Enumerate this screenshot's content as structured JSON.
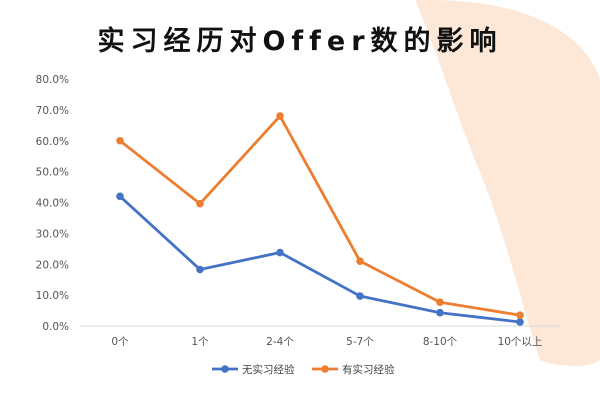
{
  "colors": {
    "series_1": "#4472c4",
    "series_2": "#ed7d31",
    "background_blob": "#fde7d6",
    "axis_line": "#d9d9d9"
  },
  "chart_data": {
    "type": "line",
    "title": "实习经历对Offer数的影响",
    "xlabel": "",
    "ylabel": "",
    "categories": [
      "0个",
      "1个",
      "2-4个",
      "5-7个",
      "8-10个",
      "10个以上"
    ],
    "ylim": [
      0,
      0.8
    ],
    "y_ticks": [
      "0.0%",
      "10.0%",
      "20.0%",
      "30.0%",
      "40.0%",
      "50.0%",
      "60.0%",
      "70.0%",
      "80.0%"
    ],
    "grid": false,
    "legend_position": "bottom",
    "series": [
      {
        "name": "无实习经验",
        "values": [
          0.42,
          0.183,
          0.238,
          0.097,
          0.043,
          0.013
        ]
      },
      {
        "name": "有实习经验",
        "values": [
          0.6,
          0.396,
          0.68,
          0.21,
          0.077,
          0.035
        ]
      }
    ]
  }
}
